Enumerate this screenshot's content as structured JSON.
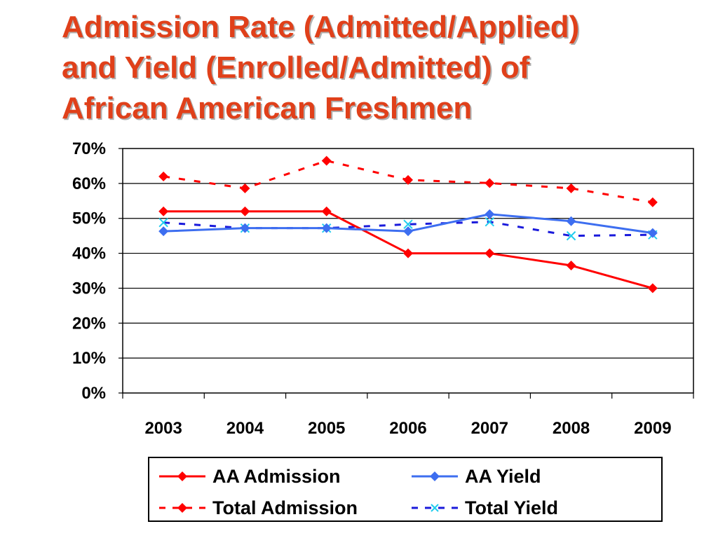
{
  "title": {
    "lines": [
      "Admission Rate (Admitted/Applied)",
      "and Yield (Enrolled/Admitted) of",
      "African American Freshmen"
    ]
  },
  "chart_data": {
    "type": "line",
    "title": "Admission Rate (Admitted/Applied) and Yield (Enrolled/Admitted) of African American Freshmen",
    "x": [
      "2003",
      "2004",
      "2005",
      "2006",
      "2007",
      "2008",
      "2009"
    ],
    "yticks": [
      "0%",
      "10%",
      "20%",
      "30%",
      "40%",
      "50%",
      "60%",
      "70%"
    ],
    "ylim": [
      0,
      70
    ],
    "grid": true,
    "legend_position": "bottom",
    "series": [
      {
        "name": "AA Admission",
        "values": [
          52,
          52,
          52,
          40,
          40,
          36.5,
          30
        ],
        "color": "#ff0000",
        "style": "solid",
        "marker": "diamond"
      },
      {
        "name": "AA Yield",
        "values": [
          46.3,
          47.2,
          47.2,
          46.3,
          51.2,
          49.2,
          45.8
        ],
        "color": "#3d6ef0",
        "style": "solid",
        "marker": "diamond"
      },
      {
        "name": "Total Admission",
        "values": [
          62,
          58.6,
          66.5,
          61,
          60.1,
          58.6,
          54.6
        ],
        "color": "#ff0000",
        "style": "dashed",
        "marker": "diamond"
      },
      {
        "name": "Total Yield",
        "values": [
          48.8,
          47.2,
          47.2,
          48.3,
          49,
          45,
          45.3
        ],
        "color": "#1a1adb",
        "style": "dashed",
        "marker": "x",
        "marker_color": "#22ccee"
      }
    ]
  }
}
